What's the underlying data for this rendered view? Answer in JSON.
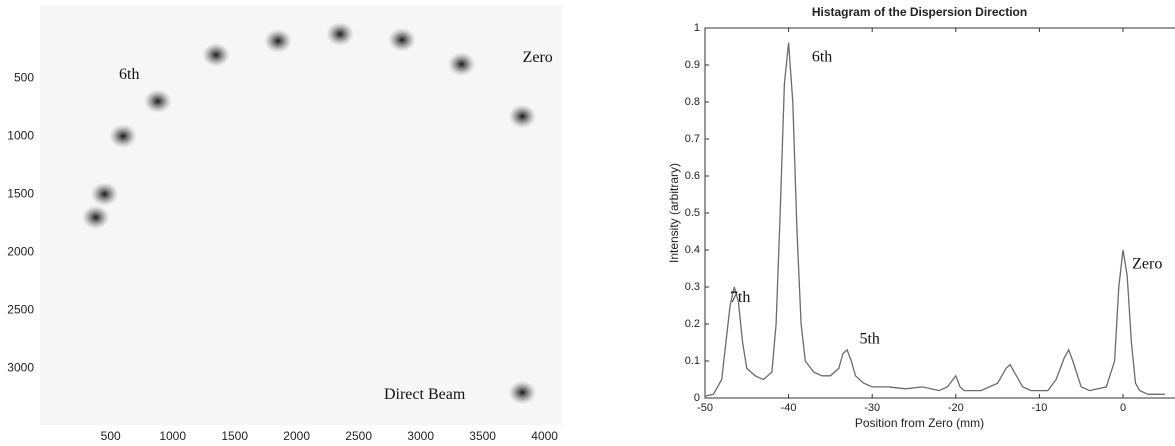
{
  "chart_data": [
    {
      "type": "image",
      "xlim": [
        -70,
        4140
      ],
      "ylim": [
        3490,
        -130
      ],
      "xticks": [
        500,
        1000,
        1500,
        2000,
        2500,
        3000,
        3500,
        4000
      ],
      "yticks": [
        500,
        1000,
        1500,
        2000,
        2500,
        3000
      ],
      "color": "#111111",
      "points": {
        "x": [
          880,
          1350,
          1850,
          2350,
          2850,
          3330,
          3820,
          3820,
          600,
          450,
          380
        ],
        "y": [
          700,
          300,
          180,
          120,
          170,
          380,
          830,
          3210,
          1000,
          1500,
          1700
        ]
      },
      "annotations": [
        {
          "text": "6th",
          "x": 650,
          "y": 475
        },
        {
          "text": "Zero",
          "x": 3944,
          "y": 328
        },
        {
          "text": "Direct Beam",
          "x": 3032,
          "y": 3233
        }
      ]
    },
    {
      "type": "line",
      "title": "Histagram of the Dispersion Direction",
      "x_label": "Position from Zero (mm)",
      "y_label": "Intensity (arbitrary)",
      "xlim": [
        -50,
        6.1
      ],
      "ylim": [
        0,
        1
      ],
      "xticks": [
        -50,
        -40,
        -30,
        -20,
        -10,
        0
      ],
      "yticks": [
        0,
        0.1,
        0.2,
        0.3,
        0.4,
        0.5,
        0.6,
        0.7,
        0.8,
        0.9,
        1
      ],
      "color": "#6b6b6b",
      "x": [
        -50,
        -49,
        -48,
        -47.5,
        -47,
        -46.5,
        -46,
        -45.5,
        -45,
        -44,
        -43,
        -42,
        -41.5,
        -41,
        -40.5,
        -40,
        -39.5,
        -39,
        -38.5,
        -38,
        -37,
        -36,
        -35,
        -34,
        -33.5,
        -33,
        -32.5,
        -32,
        -31,
        -30,
        -28,
        -26,
        -24,
        -22,
        -21,
        -20,
        -19.5,
        -19,
        -17,
        -15,
        -14,
        -13.5,
        -13,
        -12,
        -11,
        -9,
        -8,
        -7,
        -6.5,
        -6,
        -5,
        -4,
        -2,
        -1,
        -0.5,
        0,
        0.5,
        1,
        1.5,
        2,
        3,
        4,
        5
      ],
      "values": [
        0.005,
        0.01,
        0.05,
        0.15,
        0.25,
        0.3,
        0.26,
        0.15,
        0.08,
        0.06,
        0.05,
        0.07,
        0.2,
        0.5,
        0.85,
        0.96,
        0.8,
        0.45,
        0.2,
        0.1,
        0.07,
        0.06,
        0.06,
        0.08,
        0.12,
        0.13,
        0.1,
        0.06,
        0.04,
        0.03,
        0.03,
        0.025,
        0.03,
        0.02,
        0.03,
        0.06,
        0.03,
        0.02,
        0.02,
        0.04,
        0.08,
        0.09,
        0.07,
        0.03,
        0.02,
        0.02,
        0.05,
        0.11,
        0.13,
        0.1,
        0.03,
        0.02,
        0.03,
        0.1,
        0.3,
        0.4,
        0.33,
        0.15,
        0.04,
        0.02,
        0.01,
        0.01,
        0.01
      ],
      "annotations": [
        {
          "text": "7th",
          "x": -45.8,
          "y": 0.27
        },
        {
          "text": "6th",
          "x": -36,
          "y": 0.92
        },
        {
          "text": "5th",
          "x": -30.3,
          "y": 0.157
        },
        {
          "text": "Zero",
          "x": 2.9,
          "y": 0.36
        }
      ]
    }
  ]
}
